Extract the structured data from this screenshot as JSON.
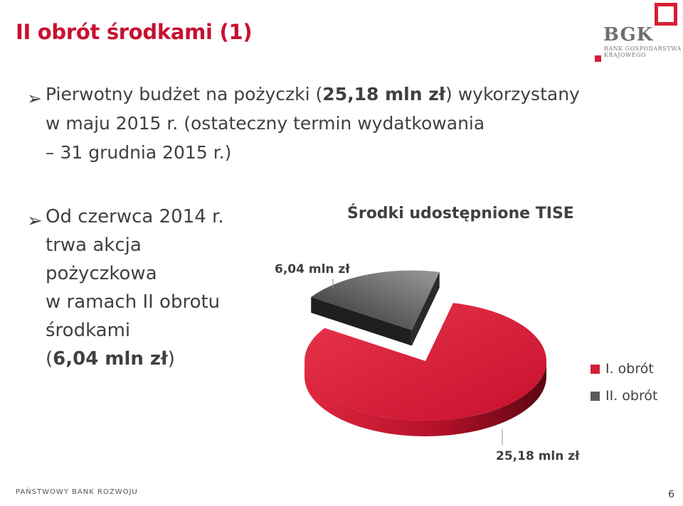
{
  "slide": {
    "title": "II obrót środkami (1)",
    "page_number": "6",
    "footer": "PAŃSTWOWY BANK ROZWOJU"
  },
  "logo": {
    "brand": "BGK",
    "subtitle": "BANK GOSPODARSTWA KRAJOWEGO",
    "accent_color": "#d71e36"
  },
  "bullets": [
    {
      "marker": "➢",
      "text_a": "Pierwotny budżet na pożyczki (",
      "text_b_bold": "25,18 mln zł",
      "text_c": ") wykorzystany",
      "text_d": "w maju 2015 r. (ostateczny termin wydatkowania",
      "text_e": "– 31 grudnia 2015 r.)"
    },
    {
      "marker": "➢",
      "line1": "Od czerwca 2014 r.",
      "line2": "trwa akcja",
      "line3": "pożyczkowa",
      "line4": "w ramach II obrotu",
      "line5": "środkami",
      "line6_open": "(",
      "line6_bold": "6,04 mln zł",
      "line6_close": ")"
    }
  ],
  "chart_data": {
    "type": "pie",
    "title": "Środki udostępnione TISE",
    "categories": [
      "I. obrót",
      "II. obrót"
    ],
    "values": [
      25.18,
      6.04
    ],
    "data_labels": [
      "25,18 mln zł",
      "6,04 mln zł"
    ],
    "colors": [
      "#d71e36",
      "#5a5a5a"
    ],
    "legend_position": "right",
    "exploded_slice": "II. obrót"
  }
}
